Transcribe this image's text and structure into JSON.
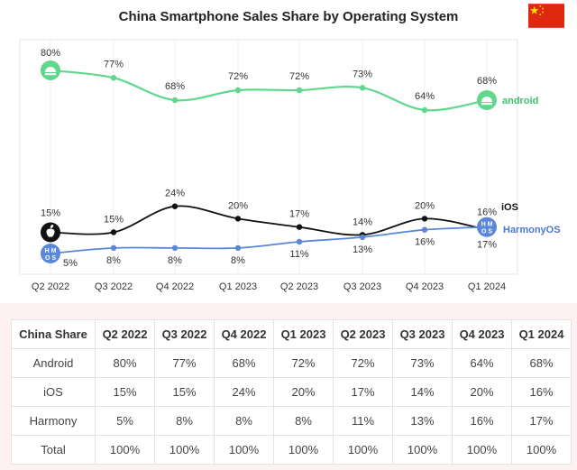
{
  "title": "China Smartphone Sales Share by Operating System",
  "colors": {
    "android": "#5fd88d",
    "ios": "#111111",
    "harmony": "#5b87d9",
    "android_label": "#3fc36f",
    "harmony_label": "#4a78cf",
    "flag_red": "#de2910",
    "flag_star": "#ffde00"
  },
  "icons": {
    "android": "android-logo-icon",
    "ios": "apple-logo-icon",
    "harmony": "harmonyos-logo-icon",
    "flag": "china-flag-icon"
  },
  "chart_data": {
    "type": "line",
    "title": "China Smartphone Sales Share by Operating System",
    "categories": [
      "Q2 2022",
      "Q3 2022",
      "Q4 2022",
      "Q1 2023",
      "Q2 2023",
      "Q3 2023",
      "Q4 2023",
      "Q1 2024"
    ],
    "series": [
      {
        "name": "android",
        "values": [
          80,
          77,
          68,
          72,
          72,
          73,
          64,
          68
        ]
      },
      {
        "name": "iOS",
        "values": [
          15,
          15,
          24,
          20,
          17,
          14,
          20,
          16
        ]
      },
      {
        "name": "HarmonyOS",
        "values": [
          5,
          8,
          8,
          8,
          11,
          13,
          16,
          17
        ]
      }
    ],
    "value_suffix": "%",
    "grid": "vertical",
    "legend": "inline-right"
  },
  "table": {
    "headers": [
      "China Share",
      "Q2 2022",
      "Q3 2022",
      "Q4 2022",
      "Q1 2023",
      "Q2 2023",
      "Q3 2023",
      "Q4 2023",
      "Q1 2024"
    ],
    "rows": [
      {
        "label": "Android",
        "values": [
          "80%",
          "77%",
          "68%",
          "72%",
          "72%",
          "73%",
          "64%",
          "68%"
        ]
      },
      {
        "label": "iOS",
        "values": [
          "15%",
          "15%",
          "24%",
          "20%",
          "17%",
          "14%",
          "20%",
          "16%"
        ]
      },
      {
        "label": "Harmony",
        "values": [
          "5%",
          "8%",
          "8%",
          "8%",
          "11%",
          "13%",
          "16%",
          "17%"
        ]
      },
      {
        "label": "Total",
        "values": [
          "100%",
          "100%",
          "100%",
          "100%",
          "100%",
          "100%",
          "100%",
          "100%"
        ]
      }
    ]
  },
  "logo_text": {
    "android": "android",
    "harmony_top": "H M",
    "harmony_bottom": "O S"
  }
}
